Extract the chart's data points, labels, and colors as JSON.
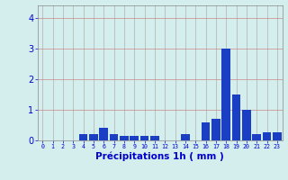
{
  "hours": [
    0,
    1,
    2,
    3,
    4,
    5,
    6,
    7,
    8,
    9,
    10,
    11,
    12,
    13,
    14,
    15,
    16,
    17,
    18,
    19,
    20,
    21,
    22,
    23
  ],
  "values": [
    0.0,
    0.0,
    0.0,
    0.0,
    0.2,
    0.2,
    0.4,
    0.2,
    0.15,
    0.15,
    0.15,
    0.15,
    0.0,
    0.0,
    0.2,
    0.0,
    0.6,
    0.7,
    3.0,
    1.5,
    1.0,
    0.2,
    0.25,
    0.25
  ],
  "bar_color": "#1a3fc4",
  "background_color": "#d4eeee",
  "grid_color": "#b0c8c8",
  "xlabel": "Précipitations 1h ( mm )",
  "ylim": [
    0,
    4.4
  ],
  "yticks": [
    0,
    1,
    2,
    3,
    4
  ],
  "xlabel_color": "#0000cc",
  "tick_color": "#0000cc",
  "grid_line_color": "#b0b0b0"
}
